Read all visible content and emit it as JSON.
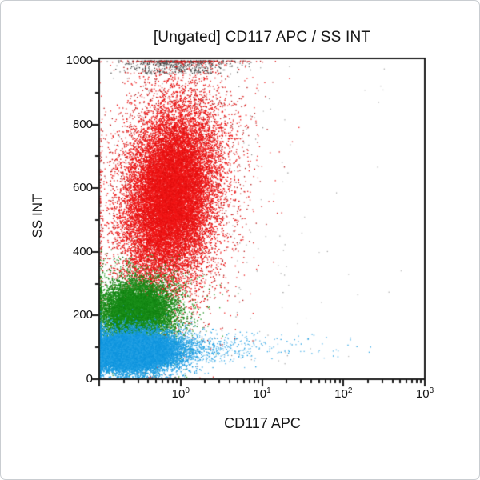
{
  "card": {
    "background": "#ffffff",
    "border_color": "#c9cdd1"
  },
  "chart_data": {
    "type": "scatter",
    "subtype": "flow-cytometry-dot-plot",
    "title": "[Ungated] CD117 APC / SS INT",
    "xlabel": "CD117 APC",
    "ylabel": "SS INT",
    "grid": false,
    "legend": "none",
    "frame_color": "#1c1c1c",
    "x_axis": {
      "scale": "log",
      "min_decade": -1,
      "max_decade": 3,
      "ticks": [
        {
          "label_base": "10",
          "exponent": "0",
          "decade": 0
        },
        {
          "label_base": "10",
          "exponent": "1",
          "decade": 1
        },
        {
          "label_base": "10",
          "exponent": "2",
          "decade": 2
        },
        {
          "label_base": "10",
          "exponent": "3",
          "decade": 3
        }
      ],
      "minor_tick_multiples": [
        2,
        3,
        4,
        5,
        6,
        7,
        8,
        9
      ]
    },
    "y_axis": {
      "scale": "linear",
      "min": 0,
      "max": 1000,
      "major_ticks": [
        {
          "label": "1000",
          "value": 1000
        },
        {
          "label": "800",
          "value": 800
        },
        {
          "label": "600",
          "value": 600
        },
        {
          "label": "400",
          "value": 400
        },
        {
          "label": "200",
          "value": 200
        },
        {
          "label": "0",
          "value": 0
        }
      ],
      "minor_tick_values": [
        100,
        300,
        500,
        700,
        900
      ]
    },
    "populations": [
      {
        "name": "background-noise-left",
        "mode": "uniform",
        "colors": [
          "#9c9c9c",
          "#b2b2b2",
          "#878787"
        ],
        "count": 170,
        "x_log_range": [
          -1,
          1.35
        ],
        "y_range": [
          20,
          1000
        ],
        "dot": 1.2
      },
      {
        "name": "background-noise-right",
        "mode": "uniform",
        "colors": [
          "#a0a0a0",
          "#b8b8b8"
        ],
        "count": 22,
        "x_log_range": [
          1.2,
          2.75
        ],
        "y_range": [
          40,
          980
        ],
        "dot": 1.2
      },
      {
        "name": "offscale-pileup-black",
        "mode": "pileup",
        "colors": [
          "#2c2c2c",
          "#474747",
          "#666666"
        ],
        "count": 600,
        "x_log_mean": -0.05,
        "x_log_sigma": 0.33,
        "y_band": [
          958,
          1000
        ],
        "dot": 1.3
      },
      {
        "name": "granulocytes-red-halo",
        "mode": "gauss",
        "colors": [
          "#ee1f1f",
          "#d91414",
          "#b01010"
        ],
        "count": 5200,
        "x_log_mean": -0.1,
        "x_log_sigma": 0.42,
        "y_mean": 590,
        "y_sigma": 215,
        "xy_slope": 0.00045,
        "dot": 1.3
      },
      {
        "name": "granulocytes-red-core",
        "mode": "gauss",
        "colors": [
          "#ee1212",
          "#f31b1b",
          "#e00e0e"
        ],
        "count": 16000,
        "x_log_mean": -0.13,
        "x_log_sigma": 0.26,
        "y_mean": 575,
        "y_sigma": 135,
        "xy_slope": 0.00045,
        "dot": 1.5
      },
      {
        "name": "monocytes-green-halo",
        "mode": "gauss",
        "colors": [
          "#1d8f1d",
          "#147714",
          "#2da02d"
        ],
        "count": 1900,
        "x_log_mean": -0.52,
        "x_log_sigma": 0.34,
        "y_mean": 215,
        "y_sigma": 75,
        "dot": 1.3
      },
      {
        "name": "monocytes-green-core",
        "mode": "gauss",
        "colors": [
          "#178a17",
          "#108010",
          "#1e941e"
        ],
        "count": 9000,
        "x_log_mean": -0.55,
        "x_log_sigma": 0.21,
        "y_mean": 208,
        "y_sigma": 45,
        "dot": 1.5
      },
      {
        "name": "lymphocytes-blue-cd117pos-tail",
        "mode": "tail",
        "colors": [
          "#189ae0",
          "#2fa6e6",
          "#5fb9ea"
        ],
        "count": 1300,
        "x_log_start": -0.35,
        "x_log_decay": 0.45,
        "x_log_max": 2.35,
        "y_mean": 98,
        "y_sigma": 24,
        "dot": 1.3
      },
      {
        "name": "lymphocytes-blue-halo",
        "mode": "gauss",
        "colors": [
          "#1b9ce1",
          "#49afe7"
        ],
        "count": 2600,
        "x_log_mean": -0.58,
        "x_log_sigma": 0.33,
        "y_mean": 92,
        "y_sigma": 42,
        "dot": 1.3
      },
      {
        "name": "lymphocytes-blue-core",
        "mode": "gauss",
        "colors": [
          "#169ae1",
          "#0d93dd",
          "#27a2e4"
        ],
        "count": 15000,
        "x_log_mean": -0.62,
        "x_log_sigma": 0.26,
        "y_mean": 85,
        "y_sigma": 28,
        "dot": 1.5
      }
    ]
  }
}
